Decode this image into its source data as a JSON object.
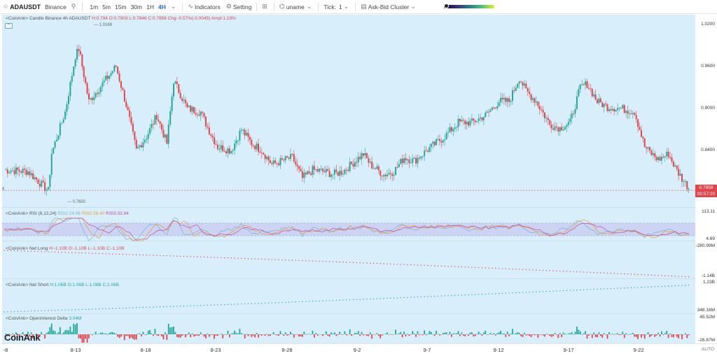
{
  "toolbar": {
    "symbol": "ADAUSDT",
    "exchange": "Binance",
    "intervals": [
      "1m",
      "5m",
      "15m",
      "30m",
      "1H",
      "4H"
    ],
    "active_interval": "4H",
    "indicators_label": "Indicators",
    "setting_label": "Setting",
    "user_label": "uname",
    "tick_label": "Tick:",
    "tick_value": "1",
    "cluster_label": "Ask-Bid Cluster",
    "gradient_position": 0.05
  },
  "main_chart": {
    "legend_prefix": "<CoinAnk> Candle",
    "legend_symbol": "Binance 4h ADAUSDT",
    "open": "O:0.7903",
    "high": "H:0.794",
    "low": "L:0.7846",
    "close": "C:0.7858",
    "change": "Chg:-0.57%(-0.0045)",
    "amplitude": "Ampl:1.19%",
    "price_ticks": [
      "1.0200",
      "0.9600",
      "0.9000",
      "0.8400"
    ],
    "last_price": "0.7858",
    "countdown": "00:57:20",
    "high_marker": "1.0169",
    "low_marker": "0.7650"
  },
  "rsi": {
    "legend_prefix": "<CoinAnk> RSI",
    "params": "(6,12,24)",
    "rsi1": "RSI1:24.06",
    "rsi2": "RSI2:28.40",
    "rsi3": "RSI3:33.94",
    "ticks": [
      "113.11",
      "4.69"
    ]
  },
  "net_long": {
    "legend_prefix": "<CoinAnk> Net Long",
    "high": "H:-1.10B",
    "open": "O:-1.10B",
    "low": "L:-1.10B",
    "close": "C:-1.10B",
    "ticks": [
      "-280.99M",
      "-1.14B"
    ]
  },
  "net_short": {
    "legend_prefix": "<CoinAnk> Net Short",
    "high": "H:1.06B",
    "open": "O:1.06B",
    "low": "L:1.06B",
    "close": "C:1.06B",
    "ticks": [
      "1.23B",
      "348.16M"
    ]
  },
  "oi_delta": {
    "legend_prefix": "<CoinAnk> OpenInterest Delta",
    "value": "3.04M",
    "ticks": [
      "45.52M",
      "-26.87M"
    ]
  },
  "x_axis": {
    "labels": [
      "-8",
      "8-13",
      "8-18",
      "8-23",
      "8-28",
      "9-2",
      "9-7",
      "9-12",
      "9-17",
      "9-22"
    ],
    "auto_label": "AUTO"
  },
  "watermark": "CoinAnk",
  "colors": {
    "up": "#26a69a",
    "down": "#e0454b",
    "pane_bg": "#d8effb",
    "rsi_band": "#c9c8f0"
  },
  "icons": {
    "star": "star-icon",
    "search": "search-icon",
    "indicators": "indicators-icon",
    "settings": "gear-icon",
    "layout": "layout-grid-icon",
    "user": "user-icon"
  }
}
